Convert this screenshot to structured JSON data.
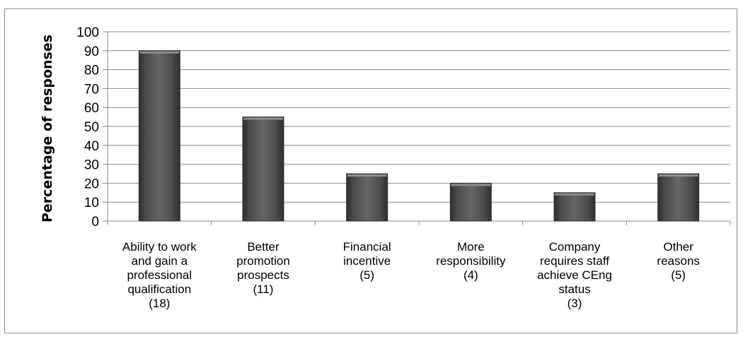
{
  "chart_data": {
    "type": "bar",
    "title": "",
    "xlabel": "",
    "ylabel": "Percentage of responses",
    "ylim": [
      0,
      100
    ],
    "yticks": [
      0,
      10,
      20,
      30,
      40,
      50,
      60,
      70,
      80,
      90,
      100
    ],
    "grid": true,
    "categories": [
      [
        "Ability to work",
        "and gain a",
        "professional",
        "qualification",
        "(18)"
      ],
      [
        "Better",
        "promotion",
        "prospects",
        "(11)"
      ],
      [
        "Financial",
        "incentive",
        "(5)"
      ],
      [
        "More",
        "responsibility",
        "(4)"
      ],
      [
        "Company",
        "requires staff",
        "achieve CEng",
        "status",
        "(3)"
      ],
      [
        "Other",
        "reasons",
        "(5)"
      ]
    ],
    "values": [
      90,
      55,
      25,
      20,
      15,
      25
    ],
    "bar_color": "#4a4a4a"
  }
}
